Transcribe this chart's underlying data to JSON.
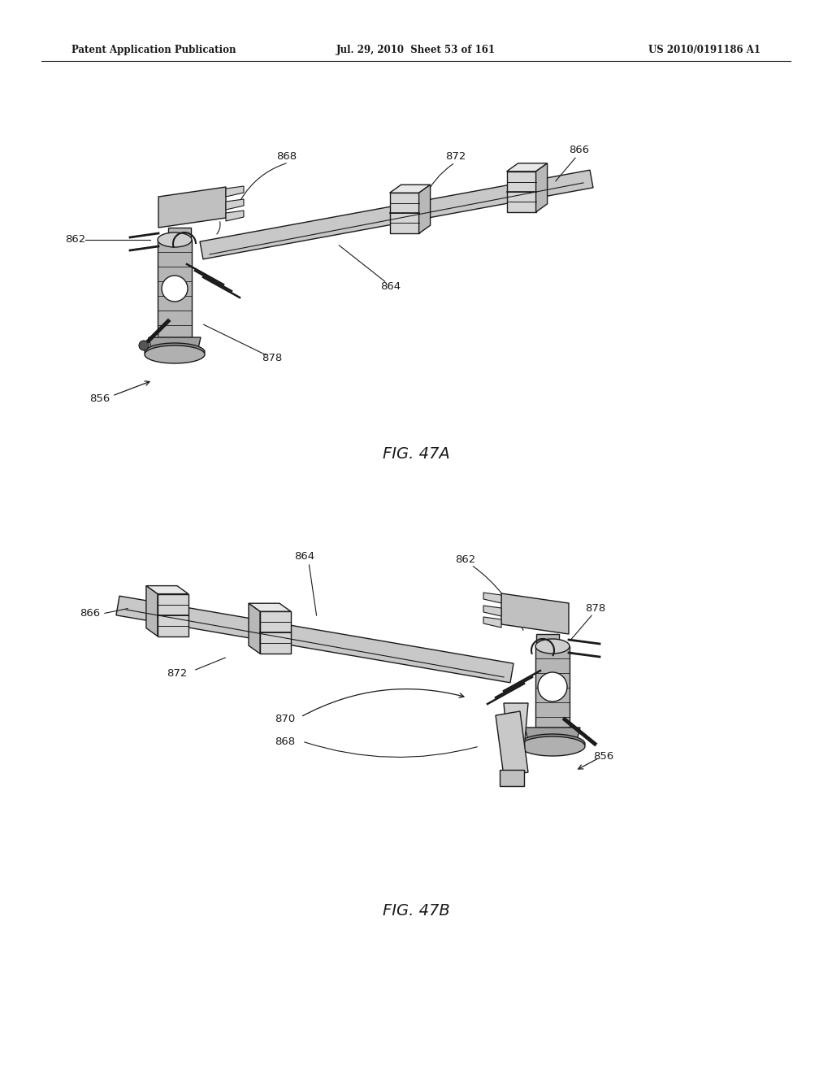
{
  "background_color": "#ffffff",
  "header_left": "Patent Application Publication",
  "header_mid": "Jul. 29, 2010  Sheet 53 of 161",
  "header_right": "US 2010/0191186 A1",
  "fig_a_label": "FIG. 47A",
  "fig_b_label": "FIG. 47B",
  "line_color": "#1a1a1a",
  "gray_fill": "#c8c8c8",
  "dark_gray": "#888888",
  "mid_gray": "#aaaaaa"
}
